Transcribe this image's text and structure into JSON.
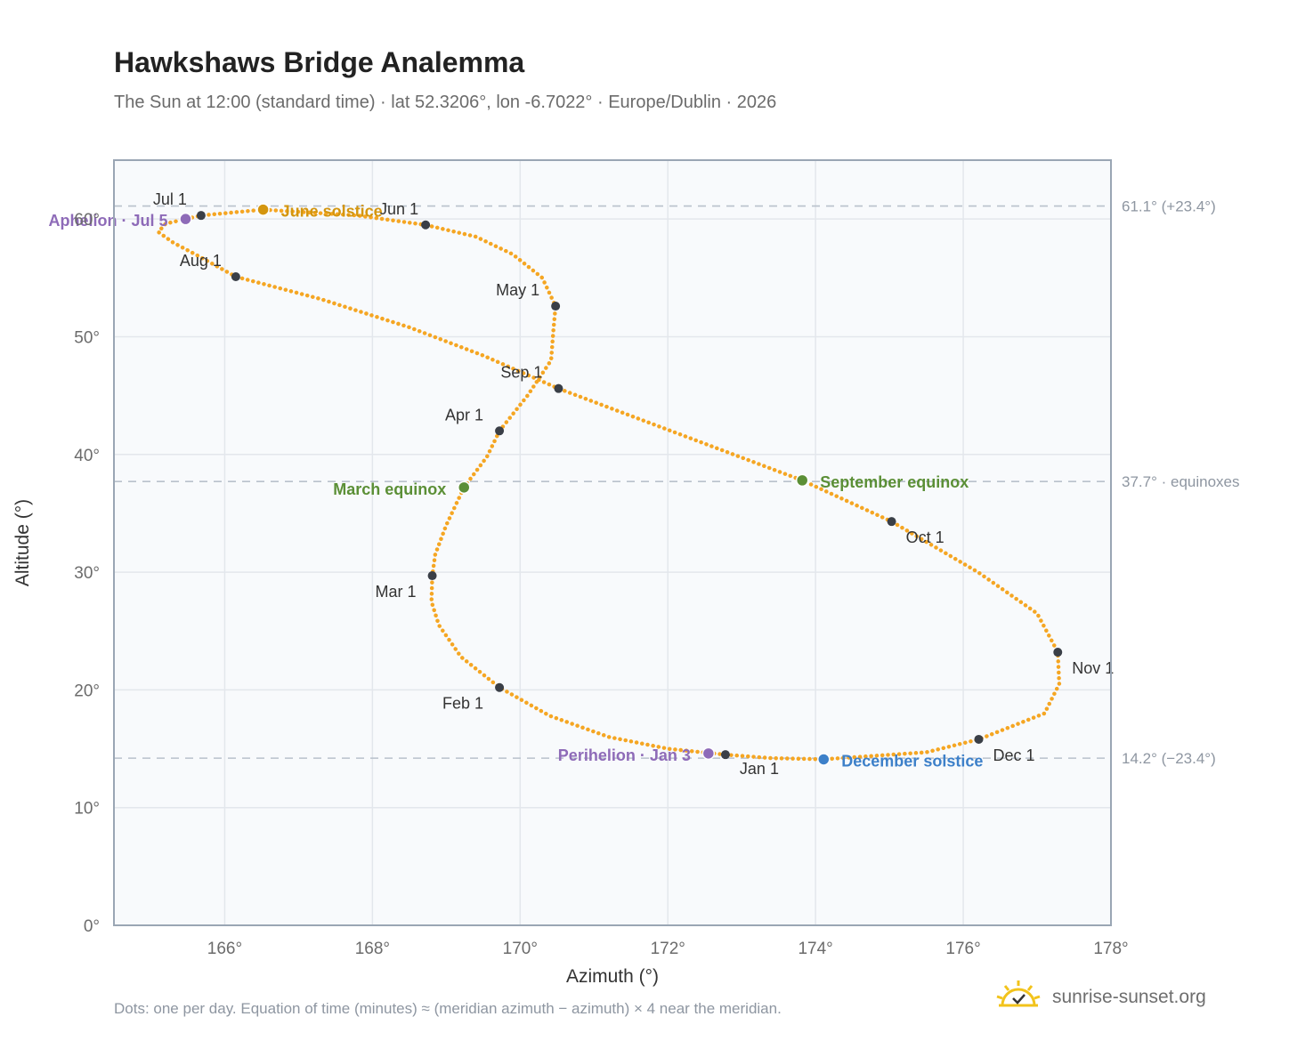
{
  "title": "Hawkshaws Bridge Analemma",
  "subtitle": "The Sun at 12:00 (standard time) · lat 52.3206°, lon -6.7022° · Europe/Dublin · 2026",
  "footnote": "Dots: one per day. Equation of time (minutes) ≈ (meridian azimuth − azimuth) × 4 near the meridian.",
  "brand": {
    "name": "sunrise-sunset.org",
    "icon": "sun-check-icon"
  },
  "colors": {
    "curve": "#f5a623",
    "month_marker": "#3a3f47",
    "june_solstice": "#d4960f",
    "december_solstice": "#3d80c9",
    "equinox": "#5b8f36",
    "apsis": "#8e6bb8",
    "grid": "#e3e7ec",
    "plot_bg": "#f8fafc",
    "plot_border": "#9aa6b4"
  },
  "chart_data": {
    "type": "scatter",
    "xlabel": "Azimuth (°)",
    "ylabel": "Altitude (°)",
    "xlim": [
      164.5,
      178
    ],
    "ylim": [
      0,
      65
    ],
    "x_ticks": [
      166,
      168,
      170,
      172,
      174,
      176,
      178
    ],
    "x_tick_labels": [
      "166°",
      "168°",
      "170°",
      "172°",
      "174°",
      "176°",
      "178°"
    ],
    "y_ticks": [
      0,
      10,
      20,
      30,
      40,
      50,
      60
    ],
    "y_tick_labels": [
      "0°",
      "10°",
      "20°",
      "30°",
      "40°",
      "50°",
      "60°"
    ],
    "grid": true,
    "reference_lines": [
      {
        "y": 61.1,
        "label": "61.1° (+23.4°)"
      },
      {
        "y": 37.7,
        "label": "37.7° · equinoxes"
      },
      {
        "y": 14.2,
        "label": "14.2° (−23.4°)"
      }
    ],
    "month_markers": [
      {
        "label": "Jan 1",
        "azimuth": 172.78,
        "altitude": 14.5
      },
      {
        "label": "Feb 1",
        "azimuth": 169.72,
        "altitude": 20.2
      },
      {
        "label": "Mar 1",
        "azimuth": 168.81,
        "altitude": 29.7
      },
      {
        "label": "Apr 1",
        "azimuth": 169.72,
        "altitude": 42.0
      },
      {
        "label": "May 1",
        "azimuth": 170.48,
        "altitude": 52.6
      },
      {
        "label": "Jun 1",
        "azimuth": 168.72,
        "altitude": 59.5
      },
      {
        "label": "Jul 1",
        "azimuth": 165.68,
        "altitude": 60.3
      },
      {
        "label": "Aug 1",
        "azimuth": 166.15,
        "altitude": 55.1
      },
      {
        "label": "Sep 1",
        "azimuth": 170.52,
        "altitude": 45.6
      },
      {
        "label": "Oct 1",
        "azimuth": 175.03,
        "altitude": 34.3
      },
      {
        "label": "Nov 1",
        "azimuth": 177.28,
        "altitude": 23.2
      },
      {
        "label": "Dec 1",
        "azimuth": 176.21,
        "altitude": 15.8
      }
    ],
    "events": [
      {
        "label": "June solstice",
        "azimuth": 166.52,
        "altitude": 60.8,
        "color": "#d4960f"
      },
      {
        "label": "December solstice",
        "azimuth": 174.11,
        "altitude": 14.1,
        "color": "#3d80c9"
      },
      {
        "label": "March equinox",
        "azimuth": 169.24,
        "altitude": 37.2,
        "color": "#5b8f36"
      },
      {
        "label": "September equinox",
        "azimuth": 173.82,
        "altitude": 37.8,
        "color": "#5b8f36"
      },
      {
        "label": "Perihelion · Jan 3",
        "azimuth": 172.55,
        "altitude": 14.6,
        "color": "#8e6bb8"
      },
      {
        "label": "Aphelion · Jul 5",
        "azimuth": 165.47,
        "altitude": 60.0,
        "color": "#8e6bb8"
      }
    ],
    "series": [
      {
        "name": "",
        "points": [
          [
            172.78,
            14.5
          ],
          [
            172.0,
            15.0
          ],
          [
            171.2,
            16.0
          ],
          [
            170.4,
            17.8
          ],
          [
            169.72,
            20.2
          ],
          [
            169.2,
            22.8
          ],
          [
            168.9,
            25.5
          ],
          [
            168.8,
            27.5
          ],
          [
            168.81,
            29.7
          ],
          [
            168.85,
            31.5
          ],
          [
            169.0,
            34.0
          ],
          [
            169.24,
            37.2
          ],
          [
            169.55,
            39.8
          ],
          [
            169.72,
            42.0
          ],
          [
            170.1,
            45.0
          ],
          [
            170.42,
            48.0
          ],
          [
            170.45,
            50.5
          ],
          [
            170.48,
            52.6
          ],
          [
            170.3,
            55.0
          ],
          [
            169.9,
            57.0
          ],
          [
            169.4,
            58.5
          ],
          [
            168.72,
            59.5
          ],
          [
            167.8,
            60.3
          ],
          [
            166.52,
            60.8
          ],
          [
            165.68,
            60.3
          ],
          [
            165.47,
            60.0
          ],
          [
            165.2,
            59.6
          ],
          [
            165.1,
            58.9
          ],
          [
            165.3,
            58.0
          ],
          [
            165.6,
            57.0
          ],
          [
            166.15,
            55.1
          ],
          [
            167.3,
            53.2
          ],
          [
            168.5,
            50.8
          ],
          [
            169.5,
            48.4
          ],
          [
            170.52,
            45.6
          ],
          [
            172.0,
            42.1
          ],
          [
            173.82,
            37.8
          ],
          [
            175.03,
            34.3
          ],
          [
            176.2,
            30.0
          ],
          [
            177.0,
            26.5
          ],
          [
            177.28,
            23.2
          ],
          [
            177.3,
            20.5
          ],
          [
            177.1,
            18.0
          ],
          [
            176.21,
            15.8
          ],
          [
            175.5,
            14.7
          ],
          [
            174.11,
            14.1
          ],
          [
            173.4,
            14.2
          ],
          [
            172.78,
            14.5
          ]
        ]
      }
    ]
  }
}
